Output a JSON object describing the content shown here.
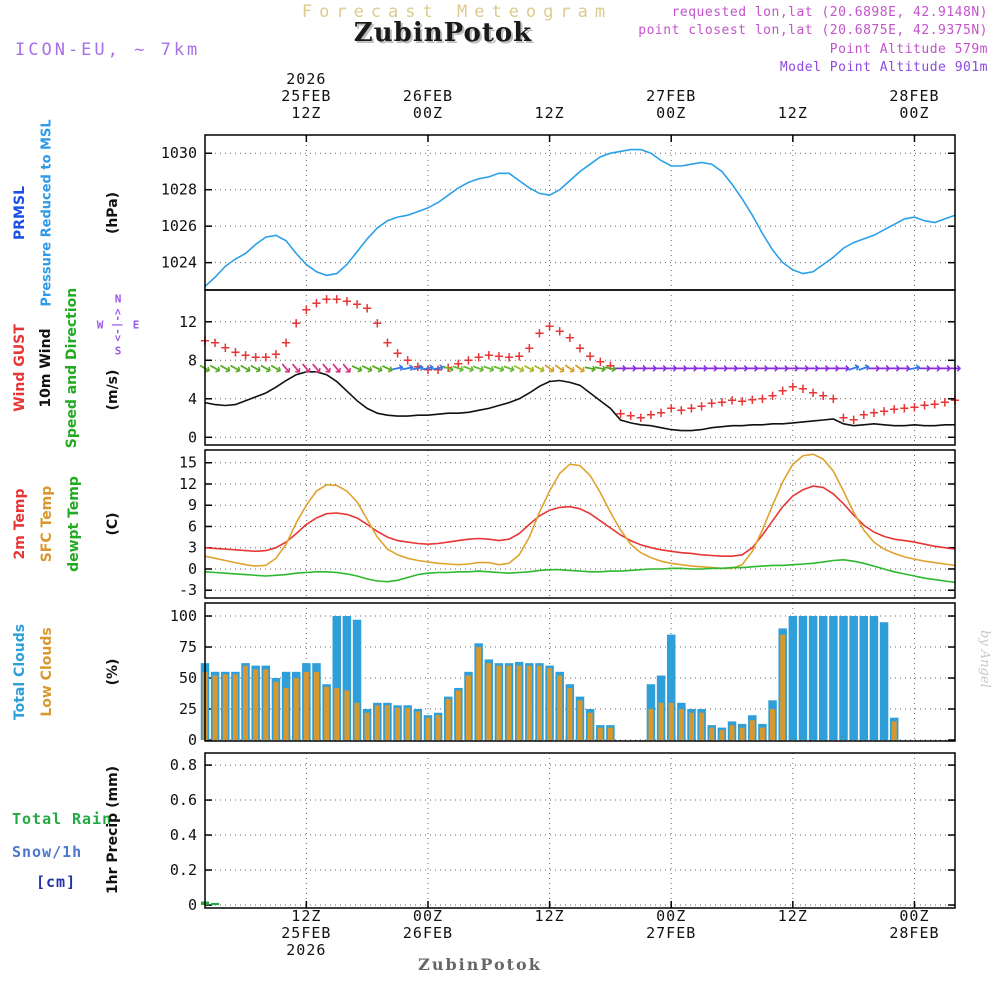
{
  "header": {
    "banner": "Forecast Meteogram",
    "station": "ZubinPotok",
    "model": "ICON-EU, ~ 7km",
    "requested": "requested lon,lat (20.6898E, 42.9148N)",
    "closest": "point closest lon,lat (20.6875E, 42.9375N)",
    "point_altitude": "Point Altitude 579m",
    "model_altitude": "Model Point Altitude 901m",
    "credit": "by Angel",
    "footer": "ZubinPotok"
  },
  "header_colors": {
    "banner": "#ddcb8e",
    "station": "#1a1a1a",
    "model": "#a76fe8",
    "requested": "#c353cc",
    "closest": "#c353cc",
    "point_altitude": "#c353cc",
    "model_altitude": "#8d49e0",
    "credit": "#c8c8c8",
    "footer": "#666666"
  },
  "labels": {
    "pressure": [
      {
        "text": "PRMSL",
        "color": "#1a4fe8"
      },
      {
        "text": "Pressure Reduced to MSL",
        "color": "#2e9ae8"
      },
      {
        "text": "(hPa)",
        "color": "#111111"
      }
    ],
    "wind": [
      {
        "text": "Wind GUST",
        "color": "#e83535"
      },
      {
        "text": "10m Wind",
        "color": "#111111"
      },
      {
        "text": "Speed and Direction",
        "color": "#22aa22"
      },
      {
        "text": "(m/s)",
        "color": "#111111"
      }
    ],
    "compass": {
      "n": "N",
      "s": "S",
      "w": "W",
      "e": "E",
      "arrows": "<-|->",
      "color": "#9b59e8"
    },
    "temp": [
      {
        "text": "2m Temp",
        "color": "#e83535"
      },
      {
        "text": "SFC Temp",
        "color": "#d9982e"
      },
      {
        "text": "dewpt Temp",
        "color": "#22aa22"
      },
      {
        "text": "(C)",
        "color": "#111111"
      }
    ],
    "clouds": [
      {
        "text": "Total Clouds",
        "color": "#2f9fd9"
      },
      {
        "text": "Low Clouds",
        "color": "#d9982e"
      },
      {
        "text": "(%)",
        "color": "#111111"
      }
    ],
    "precip_left": [
      {
        "text": "Total",
        "color": "#22aa44"
      },
      {
        "text": "Rain",
        "color": "#22aa44"
      },
      {
        "text": "Snow/1h",
        "color": "#4b77cc"
      },
      {
        "text": "[cm]",
        "color": "#2233aa"
      }
    ],
    "precip_axis": {
      "text": "1hr Precip (mm)",
      "color": "#111111"
    }
  },
  "time_axis": {
    "hours_total": 74,
    "ticks": [
      {
        "h": 10,
        "top": [
          "2026",
          "25FEB",
          "12Z"
        ],
        "bottom": [
          "12Z",
          "25FEB",
          "2026"
        ]
      },
      {
        "h": 22,
        "top": [
          "",
          "26FEB",
          "00Z"
        ],
        "bottom": [
          "00Z",
          "26FEB",
          ""
        ]
      },
      {
        "h": 34,
        "top": [
          "",
          "",
          "12Z"
        ],
        "bottom": [
          "12Z",
          "",
          ""
        ]
      },
      {
        "h": 46,
        "top": [
          "",
          "27FEB",
          "00Z"
        ],
        "bottom": [
          "00Z",
          "27FEB",
          ""
        ]
      },
      {
        "h": 58,
        "top": [
          "",
          "",
          "12Z"
        ],
        "bottom": [
          "12Z",
          "",
          ""
        ]
      },
      {
        "h": 70,
        "top": [
          "",
          "28FEB",
          "00Z"
        ],
        "bottom": [
          "00Z",
          "28FEB",
          ""
        ]
      }
    ]
  },
  "chart_data": [
    {
      "id": "pressure",
      "type": "line",
      "title": "PRMSL Pressure Reduced to MSL",
      "ylabel": "hPa",
      "yticks": [
        1024,
        1026,
        1028,
        1030
      ],
      "series": [
        {
          "name": "PRMSL",
          "style": "line",
          "color": "#2aa0e8",
          "values": [
            1022.7,
            1023.2,
            1023.8,
            1024.2,
            1024.5,
            1025.0,
            1025.4,
            1025.5,
            1025.2,
            1024.5,
            1023.9,
            1023.5,
            1023.3,
            1023.4,
            1023.9,
            1024.6,
            1025.3,
            1025.9,
            1026.3,
            1026.5,
            1026.6,
            1026.8,
            1027.0,
            1027.3,
            1027.7,
            1028.1,
            1028.4,
            1028.6,
            1028.7,
            1028.9,
            1028.9,
            1028.5,
            1028.1,
            1027.8,
            1027.7,
            1028.0,
            1028.5,
            1029.0,
            1029.4,
            1029.8,
            1030.0,
            1030.1,
            1030.2,
            1030.2,
            1030.0,
            1029.6,
            1029.3,
            1029.3,
            1029.4,
            1029.5,
            1029.4,
            1029.0,
            1028.3,
            1027.5,
            1026.6,
            1025.6,
            1024.7,
            1024.0,
            1023.6,
            1023.4,
            1023.5,
            1023.9,
            1024.3,
            1024.8,
            1025.1,
            1025.3,
            1025.5,
            1025.8,
            1026.1,
            1026.4,
            1026.5,
            1026.3,
            1026.2,
            1026.4,
            1026.6
          ]
        }
      ]
    },
    {
      "id": "wind",
      "type": "mixed",
      "title": "Wind GUST / 10m Wind Speed and Direction",
      "ylabel": "m/s",
      "yticks": [
        0,
        4,
        8,
        12
      ],
      "series": [
        {
          "name": "Wind GUST",
          "style": "plus",
          "color": "#e83535",
          "values": [
            10.0,
            9.8,
            9.3,
            8.8,
            8.5,
            8.3,
            8.3,
            8.6,
            9.8,
            11.8,
            13.2,
            13.9,
            14.3,
            14.3,
            14.1,
            13.8,
            13.4,
            11.8,
            9.8,
            8.7,
            8.0,
            7.3,
            7.0,
            7.0,
            7.2,
            7.6,
            8.0,
            8.3,
            8.5,
            8.4,
            8.3,
            8.4,
            9.2,
            10.8,
            11.5,
            11.0,
            10.3,
            9.2,
            8.4,
            7.8,
            7.4,
            2.4,
            2.2,
            2.0,
            2.3,
            2.5,
            3.0,
            2.8,
            3.0,
            3.2,
            3.5,
            3.6,
            3.8,
            3.7,
            3.9,
            4.0,
            4.3,
            4.8,
            5.2,
            5.0,
            4.6,
            4.3,
            4.0,
            2.0,
            1.8,
            2.3,
            2.5,
            2.7,
            2.9,
            3.0,
            3.1,
            3.3,
            3.4,
            3.6,
            3.8
          ]
        },
        {
          "name": "10m Wind",
          "style": "line",
          "color": "#111111",
          "values": [
            3.6,
            3.4,
            3.3,
            3.4,
            3.8,
            4.2,
            4.6,
            5.2,
            5.9,
            6.5,
            6.8,
            6.8,
            6.5,
            5.8,
            4.8,
            3.8,
            3.0,
            2.5,
            2.3,
            2.2,
            2.2,
            2.3,
            2.3,
            2.4,
            2.5,
            2.5,
            2.6,
            2.8,
            3.0,
            3.3,
            3.6,
            4.0,
            4.6,
            5.3,
            5.8,
            5.9,
            5.7,
            5.4,
            4.6,
            3.8,
            3.0,
            1.8,
            1.5,
            1.3,
            1.2,
            1.0,
            0.8,
            0.7,
            0.7,
            0.8,
            1.0,
            1.1,
            1.2,
            1.2,
            1.3,
            1.3,
            1.4,
            1.4,
            1.5,
            1.6,
            1.7,
            1.8,
            1.9,
            1.4,
            1.2,
            1.3,
            1.4,
            1.3,
            1.2,
            1.2,
            1.3,
            1.2,
            1.2,
            1.3,
            1.3
          ]
        }
      ],
      "barbs": {
        "value": 7.2,
        "glyph": "→",
        "segments": [
          {
            "from": 0,
            "to": 7,
            "color": "#55aa22",
            "angle": 30
          },
          {
            "from": 8,
            "to": 14,
            "color": "#d63384",
            "angle": 50
          },
          {
            "from": 15,
            "to": 18,
            "color": "#55aa22",
            "angle": 25
          },
          {
            "from": 19,
            "to": 23,
            "color": "#3377e8",
            "angle": -12
          },
          {
            "from": 24,
            "to": 30,
            "color": "#66bb33",
            "angle": 20
          },
          {
            "from": 31,
            "to": 33,
            "color": "#a8b822",
            "angle": 28
          },
          {
            "from": 34,
            "to": 37,
            "color": "#d9a02a",
            "angle": 35
          },
          {
            "from": 38,
            "to": 40,
            "color": "#55aa22",
            "angle": 12
          },
          {
            "from": 41,
            "to": 63,
            "color": "#8a2be2",
            "angle": 0
          },
          {
            "from": 64,
            "to": 65,
            "color": "#3377e8",
            "angle": -18
          },
          {
            "from": 66,
            "to": 69,
            "color": "#8a2be2",
            "angle": 0
          },
          {
            "from": 70,
            "to": 70,
            "color": "#3377e8",
            "angle": -12
          },
          {
            "from": 71,
            "to": 74,
            "color": "#8a2be2",
            "angle": 0
          }
        ]
      }
    },
    {
      "id": "temp",
      "type": "line",
      "title": "2m Temp / SFC Temp / dewpt Temp",
      "ylabel": "C",
      "yticks": [
        -3,
        0,
        3,
        6,
        9,
        12,
        15
      ],
      "series": [
        {
          "name": "2m Temp",
          "style": "line",
          "color": "#e83535",
          "values": [
            3.0,
            2.9,
            2.8,
            2.7,
            2.6,
            2.5,
            2.6,
            3.0,
            3.8,
            5.0,
            6.3,
            7.2,
            7.8,
            7.9,
            7.7,
            7.2,
            6.3,
            5.3,
            4.5,
            4.0,
            3.8,
            3.6,
            3.5,
            3.6,
            3.8,
            4.0,
            4.2,
            4.3,
            4.2,
            4.0,
            4.2,
            5.0,
            6.3,
            7.5,
            8.3,
            8.7,
            8.8,
            8.5,
            7.8,
            6.8,
            5.8,
            4.8,
            4.0,
            3.4,
            3.0,
            2.7,
            2.5,
            2.3,
            2.2,
            2.0,
            1.9,
            1.8,
            1.8,
            2.0,
            3.0,
            4.8,
            6.8,
            8.8,
            10.3,
            11.2,
            11.7,
            11.5,
            10.6,
            9.2,
            7.6,
            6.2,
            5.2,
            4.6,
            4.2,
            4.0,
            3.8,
            3.5,
            3.2,
            3.0,
            2.8
          ]
        },
        {
          "name": "SFC Temp",
          "style": "line",
          "color": "#dfa32e",
          "values": [
            1.8,
            1.5,
            1.2,
            0.9,
            0.6,
            0.4,
            0.5,
            1.5,
            3.5,
            6.5,
            9.0,
            11.0,
            11.9,
            11.8,
            11.0,
            9.5,
            7.0,
            4.5,
            2.8,
            2.0,
            1.5,
            1.2,
            1.0,
            0.8,
            0.7,
            0.6,
            0.7,
            0.9,
            0.9,
            0.6,
            0.8,
            2.0,
            4.5,
            8.0,
            11.0,
            13.5,
            14.8,
            14.6,
            13.2,
            10.8,
            8.0,
            5.5,
            3.5,
            2.3,
            1.6,
            1.1,
            0.8,
            0.6,
            0.4,
            0.3,
            0.2,
            0.1,
            0.1,
            0.6,
            2.5,
            5.5,
            9.0,
            12.3,
            14.8,
            16.0,
            16.2,
            15.5,
            13.8,
            11.0,
            8.0,
            5.5,
            3.8,
            2.8,
            2.2,
            1.7,
            1.4,
            1.1,
            0.9,
            0.7,
            0.5
          ]
        },
        {
          "name": "dewpt Temp",
          "style": "line",
          "color": "#2db82d",
          "values": [
            -0.4,
            -0.5,
            -0.6,
            -0.7,
            -0.8,
            -0.9,
            -1.0,
            -0.9,
            -0.8,
            -0.6,
            -0.5,
            -0.4,
            -0.4,
            -0.5,
            -0.7,
            -1.0,
            -1.4,
            -1.7,
            -1.8,
            -1.6,
            -1.2,
            -0.8,
            -0.6,
            -0.5,
            -0.5,
            -0.4,
            -0.4,
            -0.3,
            -0.4,
            -0.5,
            -0.6,
            -0.5,
            -0.4,
            -0.2,
            -0.1,
            -0.1,
            -0.2,
            -0.3,
            -0.4,
            -0.4,
            -0.3,
            -0.3,
            -0.2,
            -0.1,
            0.0,
            0.0,
            0.1,
            0.1,
            0.0,
            0.0,
            0.1,
            0.1,
            0.2,
            0.2,
            0.3,
            0.4,
            0.5,
            0.5,
            0.6,
            0.7,
            0.8,
            1.0,
            1.2,
            1.3,
            1.1,
            0.8,
            0.4,
            0.0,
            -0.4,
            -0.7,
            -1.0,
            -1.3,
            -1.5,
            -1.7,
            -1.9
          ]
        }
      ]
    },
    {
      "id": "clouds",
      "type": "bars",
      "title": "Total Clouds / Low Clouds",
      "ylabel": "%",
      "yticks": [
        0,
        25,
        50,
        75,
        100
      ],
      "series": [
        {
          "name": "Total Clouds",
          "color": "#2f9fd9",
          "values": [
            62,
            55,
            55,
            55,
            62,
            60,
            60,
            50,
            55,
            55,
            62,
            62,
            45,
            100,
            100,
            97,
            25,
            30,
            30,
            28,
            28,
            25,
            20,
            22,
            35,
            42,
            55,
            78,
            65,
            62,
            62,
            63,
            62,
            62,
            60,
            55,
            45,
            35,
            25,
            12,
            12,
            0,
            0,
            0,
            45,
            52,
            85,
            30,
            25,
            25,
            12,
            10,
            15,
            13,
            20,
            13,
            32,
            90,
            100,
            100,
            100,
            100,
            100,
            100,
            100,
            100,
            100,
            95,
            18,
            0,
            0,
            0,
            0,
            0,
            0
          ]
        },
        {
          "name": "Low Clouds",
          "color": "#d9982e",
          "values": [
            55,
            52,
            53,
            53,
            60,
            57,
            57,
            47,
            42,
            50,
            55,
            55,
            43,
            42,
            40,
            30,
            22,
            28,
            28,
            26,
            26,
            23,
            18,
            20,
            33,
            40,
            52,
            75,
            62,
            60,
            60,
            60,
            60,
            60,
            58,
            52,
            42,
            32,
            22,
            10,
            10,
            0,
            0,
            0,
            25,
            30,
            30,
            25,
            22,
            22,
            10,
            8,
            12,
            10,
            16,
            10,
            25,
            85,
            0,
            0,
            0,
            0,
            0,
            0,
            0,
            0,
            0,
            0,
            15,
            0,
            0,
            0,
            0,
            0,
            0
          ]
        }
      ]
    },
    {
      "id": "precip",
      "type": "bars",
      "title": "1hr Precip",
      "ylabel": "1hr Precip (mm)",
      "yticks": [
        0,
        0.2,
        0.4,
        0.6,
        0.8
      ],
      "series": [
        {
          "name": "Rain",
          "color": "#22aa44",
          "points": [
            {
              "h": 0,
              "v": 0.02
            },
            {
              "h": 1,
              "v": 0.012
            }
          ]
        },
        {
          "name": "Snow/1h",
          "color": "#4b77cc",
          "points": []
        }
      ]
    }
  ]
}
